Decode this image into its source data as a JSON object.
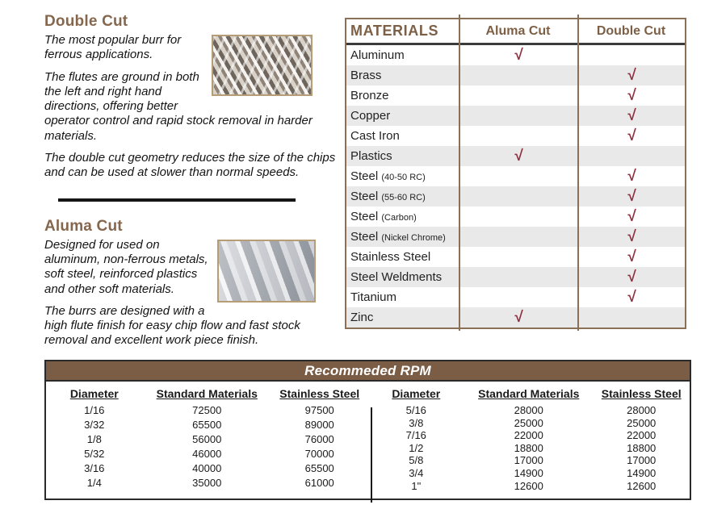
{
  "colors": {
    "heading_brown": "#85674d",
    "table_border_brown": "#8a7054",
    "check_maroon": "#8e2e3e",
    "row_stripe_gray": "#e9e9e9",
    "rpm_bar_brown": "#7b5c44",
    "header_rule_dark": "#3b3b3b"
  },
  "sections": {
    "double_cut": {
      "title": "Double Cut",
      "paragraphs": [
        "The most popular burr for ferrous applications.",
        "The flutes are ground in both the left and right hand directions, offering better operator control and rapid stock removal in harder materials.",
        "The double cut geometry reduces the size of the chips and can be used at slower than normal speeds."
      ],
      "image": "double-cut-burr-photo"
    },
    "aluma_cut": {
      "title": "Aluma Cut",
      "paragraphs": [
        "Designed for used on aluminum, non-ferrous metals, soft steel, reinforced plastics and other soft materials.",
        "The burrs are designed with a high flute finish for easy chip flow and fast stock removal and excellent work piece finish."
      ],
      "image": "aluma-cut-burr-photo"
    }
  },
  "materials_table": {
    "col_headers": [
      "MATERIALS",
      "Aluma Cut",
      "Double Cut"
    ],
    "check_symbol": "√",
    "rows": [
      {
        "name": "Aluminum",
        "note": "",
        "aluma": "√",
        "double": ""
      },
      {
        "name": "Brass",
        "note": "",
        "aluma": "",
        "double": "√"
      },
      {
        "name": "Bronze",
        "note": "",
        "aluma": "",
        "double": "√"
      },
      {
        "name": "Copper",
        "note": "",
        "aluma": "",
        "double": "√"
      },
      {
        "name": "Cast Iron",
        "note": "",
        "aluma": "",
        "double": "√"
      },
      {
        "name": "Plastics",
        "note": "",
        "aluma": "√",
        "double": ""
      },
      {
        "name": "Steel",
        "note": "(40-50 RC)",
        "aluma": "",
        "double": "√"
      },
      {
        "name": "Steel",
        "note": "(55-60 RC)",
        "aluma": "",
        "double": "√"
      },
      {
        "name": "Steel",
        "note": "(Carbon)",
        "aluma": "",
        "double": "√"
      },
      {
        "name": "Steel",
        "note": "(Nickel Chrome)",
        "aluma": "",
        "double": "√"
      },
      {
        "name": "Stainless Steel",
        "note": "",
        "aluma": "",
        "double": "√"
      },
      {
        "name": "Steel Weldments",
        "note": "",
        "aluma": "",
        "double": "√"
      },
      {
        "name": "Titanium",
        "note": "",
        "aluma": "",
        "double": "√"
      },
      {
        "name": "Zinc",
        "note": "",
        "aluma": "√",
        "double": ""
      }
    ]
  },
  "rpm_table": {
    "title": "Recommeded RPM",
    "headers": [
      "Diameter",
      "Standard Materials",
      "Stainless Steel"
    ],
    "left_rows": [
      [
        "1/16",
        "72500",
        "97500"
      ],
      [
        "3/32",
        "65500",
        "89000"
      ],
      [
        "1/8",
        "56000",
        "76000"
      ],
      [
        "5/32",
        "46000",
        "70000"
      ],
      [
        "3/16",
        "40000",
        "65500"
      ],
      [
        "1/4",
        "35000",
        "61000"
      ]
    ],
    "right_rows": [
      [
        "5/16",
        "28000",
        "28000"
      ],
      [
        "3/8",
        "25000",
        "25000"
      ],
      [
        "7/16",
        "22000",
        "22000"
      ],
      [
        "1/2",
        "18800",
        "18800"
      ],
      [
        "5/8",
        "17000",
        "17000"
      ],
      [
        "3/4",
        "14900",
        "14900"
      ],
      [
        "1\"",
        "12600",
        "12600"
      ]
    ]
  }
}
